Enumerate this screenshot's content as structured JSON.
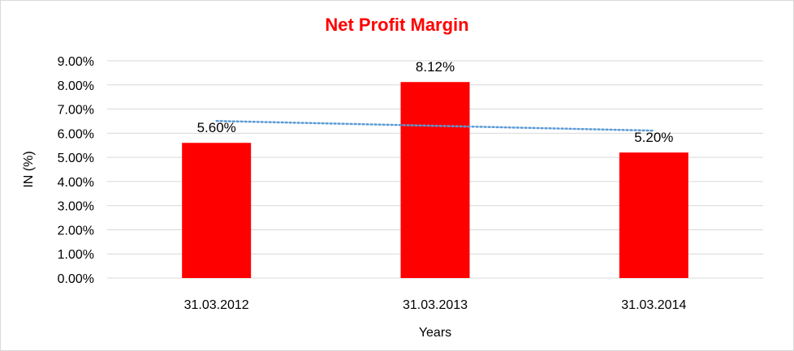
{
  "chart_data": {
    "type": "bar",
    "title": "Net Profit Margin",
    "xlabel": "Years",
    "ylabel": "IN (%)",
    "categories": [
      "31.03.2012",
      "31.03.2013",
      "31.03.2014"
    ],
    "values": [
      5.6,
      8.12,
      5.2
    ],
    "data_labels": [
      "5.60%",
      "8.12%",
      "5.20%"
    ],
    "ylim": [
      0,
      9
    ],
    "y_ticks": [
      0,
      1,
      2,
      3,
      4,
      5,
      6,
      7,
      8,
      9
    ],
    "y_tick_labels": [
      "0.00%",
      "1.00%",
      "2.00%",
      "3.00%",
      "4.00%",
      "5.00%",
      "6.00%",
      "7.00%",
      "8.00%",
      "9.00%"
    ],
    "trendline": {
      "type": "linear",
      "style": "dotted"
    },
    "grid": true,
    "colors": {
      "bars": "#ff0000",
      "title": "#ff0000",
      "trendline": "#5b9bd5",
      "grid": "#d9d9d9"
    }
  }
}
